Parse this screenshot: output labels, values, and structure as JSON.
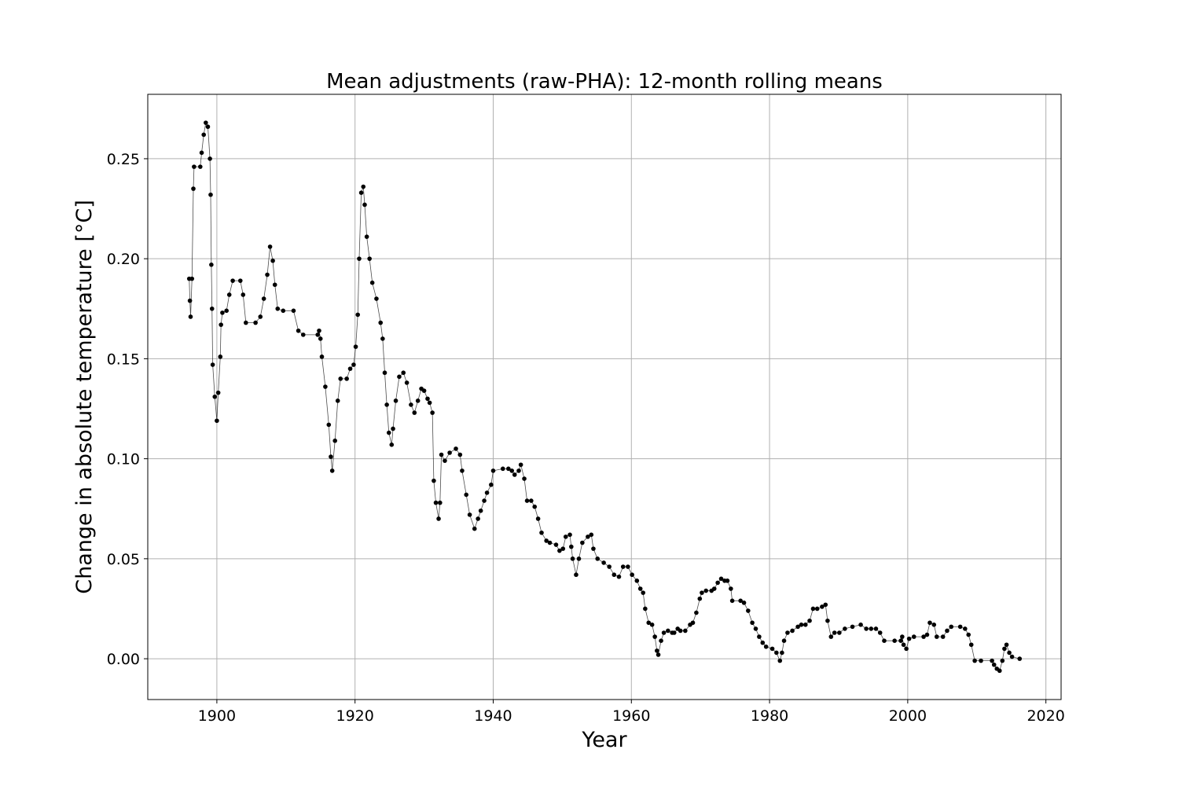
{
  "chart_data": {
    "type": "line",
    "title": "Mean adjustments (raw-PHA): 12-month rolling means",
    "xlabel": "Year",
    "ylabel": "Change in absolute temperature [°C]",
    "color": "#000000",
    "grid": true,
    "xlim": [
      1890,
      2022.2
    ],
    "ylim": [
      -0.0204,
      0.2822
    ],
    "xticks": [
      1900,
      1920,
      1940,
      1960,
      1980,
      2000,
      2020
    ],
    "yticks": [
      {
        "value": 0,
        "label": "0.00"
      },
      {
        "value": 0.05,
        "label": "0.05"
      },
      {
        "value": 0.1,
        "label": "0.10"
      },
      {
        "value": 0.15,
        "label": "0.15"
      },
      {
        "value": 0.2,
        "label": "0.20"
      },
      {
        "value": 0.25,
        "label": "0.25"
      }
    ],
    "x": [
      1896.0,
      1896.1,
      1896.2,
      1896.4,
      1896.6,
      1896.7,
      1897.6,
      1897.8,
      1898.1,
      1898.4,
      1898.7,
      1899.0,
      1899.1,
      1899.2,
      1899.3,
      1899.4,
      1899.7,
      1900.0,
      1900.2,
      1900.5,
      1900.6,
      1900.8,
      1901.4,
      1901.8,
      1902.3,
      1903.4,
      1903.8,
      1904.2,
      1905.6,
      1906.3,
      1906.8,
      1907.3,
      1907.7,
      1908.1,
      1908.4,
      1908.8,
      1909.6,
      1911.1,
      1911.8,
      1912.5,
      1914.6,
      1914.8,
      1915.0,
      1915.2,
      1915.7,
      1916.2,
      1916.5,
      1916.7,
      1917.1,
      1917.5,
      1917.9,
      1918.8,
      1919.3,
      1919.8,
      1920.1,
      1920.4,
      1920.6,
      1920.9,
      1921.2,
      1921.4,
      1921.7,
      1922.1,
      1922.5,
      1923.1,
      1923.7,
      1924.0,
      1924.3,
      1924.6,
      1924.9,
      1925.3,
      1925.5,
      1925.9,
      1926.4,
      1927.0,
      1927.5,
      1928.1,
      1928.6,
      1929.1,
      1929.6,
      1930.0,
      1930.5,
      1930.8,
      1931.2,
      1931.4,
      1931.7,
      1932.1,
      1932.3,
      1932.5,
      1933.0,
      1933.7,
      1934.6,
      1935.2,
      1935.5,
      1936.1,
      1936.6,
      1937.3,
      1937.8,
      1938.2,
      1938.7,
      1939.1,
      1939.7,
      1940.0,
      1941.4,
      1942.2,
      1942.7,
      1943.1,
      1943.7,
      1944.0,
      1944.5,
      1944.9,
      1945.5,
      1946.0,
      1946.5,
      1947.0,
      1947.7,
      1948.2,
      1949.1,
      1949.6,
      1950.1,
      1950.5,
      1951.1,
      1951.3,
      1951.5,
      1952.0,
      1952.4,
      1952.9,
      1953.7,
      1954.2,
      1954.5,
      1955.1,
      1956.0,
      1956.8,
      1957.5,
      1958.2,
      1958.8,
      1959.5,
      1960.1,
      1960.8,
      1961.3,
      1961.7,
      1962.0,
      1962.5,
      1963.0,
      1963.4,
      1963.7,
      1963.9,
      1964.3,
      1964.7,
      1965.3,
      1965.9,
      1966.2,
      1966.7,
      1967.1,
      1967.8,
      1968.5,
      1968.9,
      1969.4,
      1969.9,
      1970.2,
      1970.8,
      1971.6,
      1972.0,
      1972.5,
      1973.0,
      1973.5,
      1973.9,
      1974.4,
      1974.6,
      1975.8,
      1976.3,
      1976.9,
      1977.5,
      1978.0,
      1978.5,
      1979.0,
      1979.5,
      1980.4,
      1981.0,
      1981.5,
      1981.8,
      1982.1,
      1982.6,
      1983.3,
      1984.1,
      1984.6,
      1985.2,
      1985.8,
      1986.3,
      1986.9,
      1987.6,
      1988.1,
      1988.4,
      1988.9,
      1989.4,
      1990.1,
      1990.9,
      1992.0,
      1993.2,
      1994.0,
      1994.7,
      1995.4,
      1996.0,
      1996.6,
      1998.1,
      1999.0,
      1999.2,
      1999.4,
      1999.8,
      2000.2,
      2000.9,
      2002.3,
      2002.8,
      2003.2,
      2003.8,
      2004.2,
      2005.1,
      2005.7,
      2006.3,
      2007.6,
      2008.3,
      2008.8,
      2009.2,
      2009.7,
      2010.6,
      2012.2,
      2012.5,
      2012.9,
      2013.3,
      2013.7,
      2014.0,
      2014.3,
      2014.7,
      2015.1,
      2016.2
    ],
    "values": [
      0.19,
      0.179,
      0.171,
      0.19,
      0.235,
      0.246,
      0.246,
      0.253,
      0.262,
      0.268,
      0.266,
      0.25,
      0.232,
      0.197,
      0.175,
      0.147,
      0.131,
      0.119,
      0.133,
      0.151,
      0.167,
      0.173,
      0.174,
      0.182,
      0.189,
      0.189,
      0.182,
      0.168,
      0.168,
      0.171,
      0.18,
      0.192,
      0.206,
      0.199,
      0.187,
      0.175,
      0.174,
      0.174,
      0.164,
      0.162,
      0.162,
      0.164,
      0.16,
      0.151,
      0.136,
      0.117,
      0.101,
      0.094,
      0.109,
      0.129,
      0.14,
      0.14,
      0.145,
      0.147,
      0.156,
      0.172,
      0.2,
      0.233,
      0.236,
      0.227,
      0.211,
      0.2,
      0.188,
      0.18,
      0.168,
      0.16,
      0.143,
      0.127,
      0.113,
      0.107,
      0.115,
      0.129,
      0.141,
      0.143,
      0.138,
      0.127,
      0.123,
      0.129,
      0.135,
      0.134,
      0.13,
      0.128,
      0.123,
      0.089,
      0.078,
      0.07,
      0.078,
      0.102,
      0.099,
      0.103,
      0.105,
      0.102,
      0.094,
      0.082,
      0.072,
      0.065,
      0.07,
      0.074,
      0.079,
      0.083,
      0.087,
      0.094,
      0.095,
      0.095,
      0.094,
      0.092,
      0.094,
      0.097,
      0.09,
      0.079,
      0.079,
      0.076,
      0.07,
      0.063,
      0.059,
      0.058,
      0.057,
      0.054,
      0.055,
      0.061,
      0.062,
      0.056,
      0.05,
      0.042,
      0.05,
      0.058,
      0.061,
      0.062,
      0.055,
      0.05,
      0.048,
      0.046,
      0.042,
      0.041,
      0.046,
      0.046,
      0.042,
      0.039,
      0.035,
      0.033,
      0.025,
      0.018,
      0.017,
      0.011,
      0.004,
      0.002,
      0.009,
      0.013,
      0.014,
      0.013,
      0.013,
      0.015,
      0.014,
      0.014,
      0.017,
      0.018,
      0.023,
      0.03,
      0.033,
      0.034,
      0.034,
      0.035,
      0.038,
      0.04,
      0.039,
      0.039,
      0.035,
      0.029,
      0.029,
      0.028,
      0.024,
      0.018,
      0.015,
      0.011,
      0.008,
      0.006,
      0.005,
      0.003,
      -0.001,
      0.003,
      0.009,
      0.013,
      0.014,
      0.016,
      0.017,
      0.017,
      0.019,
      0.025,
      0.025,
      0.026,
      0.027,
      0.019,
      0.011,
      0.013,
      0.013,
      0.015,
      0.016,
      0.017,
      0.015,
      0.015,
      0.015,
      0.013,
      0.009,
      0.009,
      0.009,
      0.011,
      0.007,
      0.005,
      0.01,
      0.011,
      0.011,
      0.012,
      0.018,
      0.017,
      0.011,
      0.011,
      0.014,
      0.016,
      0.016,
      0.015,
      0.012,
      0.007,
      -0.001,
      -0.001,
      -0.001,
      -0.003,
      -0.005,
      -0.006,
      -0.001,
      0.005,
      0.007,
      0.003,
      0.001,
      0.0
    ]
  }
}
